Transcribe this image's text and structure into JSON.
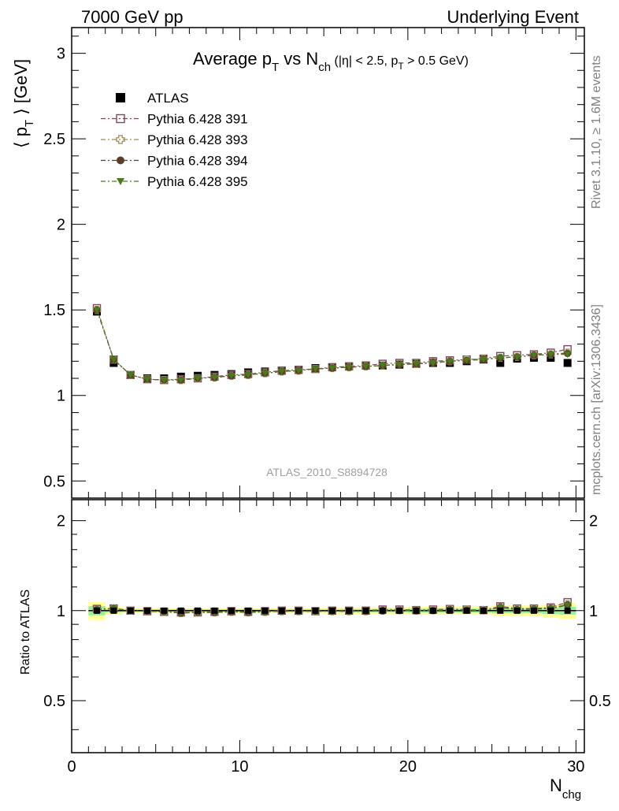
{
  "header": {
    "left": "7000 GeV pp",
    "right": "Underlying Event"
  },
  "side_labels": {
    "rivet": "Rivet 3.1.10, ≥ 1.6M events",
    "mcplots": "mcplots.cern.ch [arXiv:1306.3436]"
  },
  "chart_data": {
    "type": "scatter",
    "title": {
      "main": "Average p",
      "sub1": "T",
      "mid": " vs N",
      "sub2": "ch",
      "cut_a": " (|η| < 2.5, p",
      "cut_sub": "T",
      "cut_b": " > 0.5 GeV)"
    },
    "ylabel": {
      "a": "⟨ p",
      "sub": "T",
      "b": " ⟩ [GeV]"
    },
    "xlabel": {
      "a": "N",
      "sub": "chg"
    },
    "ratio_ylabel": "Ratio to ATLAS",
    "watermark": "ATLAS_2010_S8894728",
    "xlim": [
      0,
      30.5
    ],
    "ylim": [
      0.4,
      3.15
    ],
    "ratio_ylim": [
      0.335,
      2.35
    ],
    "xticks": [
      0,
      10,
      20,
      30
    ],
    "yticks": [
      0.5,
      1,
      1.5,
      2,
      2.5,
      3
    ],
    "ytick_labels": [
      "0.5",
      "1",
      "1.5",
      "2",
      "2.5",
      "3"
    ],
    "ratio_yticks": [
      0.5,
      1,
      2
    ],
    "ratio_ytick_labels": [
      "0.5",
      "1",
      "2"
    ],
    "x": [
      1.5,
      2.5,
      3.5,
      4.5,
      5.5,
      6.5,
      7.5,
      8.5,
      9.5,
      10.5,
      11.5,
      12.5,
      13.5,
      14.5,
      15.5,
      16.5,
      17.5,
      18.5,
      19.5,
      20.5,
      21.5,
      22.5,
      23.5,
      24.5,
      25.5,
      26.5,
      27.5,
      28.5,
      29.5
    ],
    "reference": {
      "name": "ATLAS",
      "values": [
        1.49,
        1.19,
        1.12,
        1.1,
        1.1,
        1.11,
        1.115,
        1.12,
        1.125,
        1.135,
        1.14,
        1.145,
        1.15,
        1.16,
        1.165,
        1.17,
        1.175,
        1.175,
        1.18,
        1.185,
        1.19,
        1.19,
        1.2,
        1.21,
        1.19,
        1.215,
        1.22,
        1.22,
        1.19
      ]
    },
    "series": [
      {
        "name": "Pythia 6.428 391",
        "marker": "open-square",
        "color": "#7a4a5e",
        "values": [
          1.51,
          1.21,
          1.12,
          1.095,
          1.09,
          1.095,
          1.1,
          1.11,
          1.12,
          1.125,
          1.135,
          1.145,
          1.15,
          1.155,
          1.165,
          1.17,
          1.175,
          1.185,
          1.19,
          1.19,
          1.2,
          1.205,
          1.21,
          1.215,
          1.23,
          1.235,
          1.24,
          1.25,
          1.27
        ]
      },
      {
        "name": "Pythia 6.428 393",
        "marker": "open-cross",
        "color": "#a08a5a",
        "values": [
          1.5,
          1.21,
          1.12,
          1.095,
          1.09,
          1.09,
          1.1,
          1.105,
          1.115,
          1.12,
          1.13,
          1.14,
          1.145,
          1.155,
          1.16,
          1.165,
          1.17,
          1.175,
          1.185,
          1.185,
          1.195,
          1.2,
          1.21,
          1.215,
          1.22,
          1.225,
          1.235,
          1.24,
          1.25
        ]
      },
      {
        "name": "Pythia 6.428 394",
        "marker": "filled-circle",
        "color": "#5c3d26",
        "values": [
          1.5,
          1.21,
          1.12,
          1.095,
          1.09,
          1.09,
          1.1,
          1.105,
          1.115,
          1.12,
          1.13,
          1.14,
          1.145,
          1.155,
          1.16,
          1.165,
          1.17,
          1.175,
          1.18,
          1.185,
          1.19,
          1.2,
          1.205,
          1.21,
          1.22,
          1.225,
          1.235,
          1.24,
          1.245
        ]
      },
      {
        "name": "Pythia 6.428 395",
        "marker": "filled-triangle-down",
        "color": "#4a7a1e",
        "values": [
          1.5,
          1.21,
          1.12,
          1.095,
          1.09,
          1.09,
          1.1,
          1.105,
          1.115,
          1.12,
          1.13,
          1.14,
          1.145,
          1.155,
          1.16,
          1.165,
          1.17,
          1.175,
          1.18,
          1.185,
          1.19,
          1.2,
          1.205,
          1.21,
          1.22,
          1.225,
          1.235,
          1.24,
          1.24
        ]
      }
    ],
    "uncertainty_band_inner": [
      0.035,
      0.012,
      0.01,
      0.01,
      0.01,
      0.01,
      0.01,
      0.01,
      0.01,
      0.01,
      0.01,
      0.01,
      0.01,
      0.01,
      0.01,
      0.012,
      0.012,
      0.012,
      0.012,
      0.015,
      0.015,
      0.015,
      0.015,
      0.015,
      0.02,
      0.02,
      0.02,
      0.025,
      0.03
    ],
    "uncertainty_band_outer": [
      0.07,
      0.03,
      0.02,
      0.02,
      0.02,
      0.02,
      0.02,
      0.02,
      0.02,
      0.02,
      0.02,
      0.02,
      0.02,
      0.02,
      0.025,
      0.025,
      0.025,
      0.025,
      0.025,
      0.03,
      0.03,
      0.03,
      0.03,
      0.03,
      0.04,
      0.04,
      0.04,
      0.05,
      0.06
    ],
    "colors": {
      "inner_band": "#99ee99",
      "outer_band": "#ffff99",
      "reference": "#000000"
    }
  }
}
